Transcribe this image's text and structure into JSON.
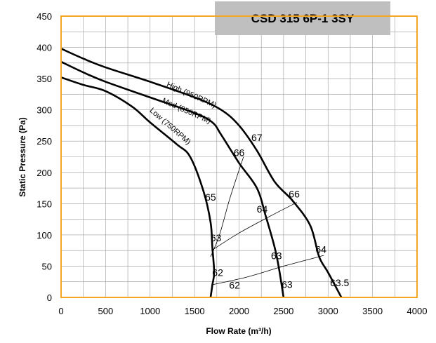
{
  "chart_data": {
    "type": "line",
    "title": "CSD 315 6P-1 3SY",
    "xlabel": "Flow Rate (m³/h)",
    "ylabel": "Static Pressure (Pa)",
    "xlim": [
      0,
      4000
    ],
    "ylim": [
      0,
      450
    ],
    "x_ticks": [
      0,
      500,
      1000,
      1500,
      2000,
      2500,
      3000,
      3500,
      4000
    ],
    "y_ticks": [
      0,
      50,
      100,
      150,
      200,
      250,
      300,
      350,
      400,
      450
    ],
    "grid": true,
    "colors": {
      "axis_frame": "#F5A623",
      "grid": "#999999",
      "title_box": "#BFBFBF",
      "curve": "#000000",
      "sound_curve": "#000000"
    },
    "series": [
      {
        "name": "High (950RPM)",
        "x": [
          0,
          250,
          500,
          1000,
          1500,
          1800,
          2000,
          2200,
          2400,
          2600,
          2800,
          2900,
          3000,
          3150
        ],
        "y": [
          398,
          382,
          368,
          345,
          320,
          300,
          275,
          235,
          185,
          155,
          115,
          65,
          40,
          0
        ]
      },
      {
        "name": "Med (850RPM)",
        "x": [
          0,
          250,
          500,
          1000,
          1500,
          1700,
          1800,
          2000,
          2200,
          2300,
          2400,
          2450,
          2500
        ],
        "y": [
          377,
          360,
          345,
          320,
          295,
          280,
          260,
          215,
          175,
          130,
          80,
          45,
          0
        ]
      },
      {
        "name": "Low (750RPM)",
        "x": [
          0,
          250,
          500,
          800,
          1000,
          1300,
          1450,
          1600,
          1680,
          1700,
          1720,
          1700,
          1680
        ],
        "y": [
          352,
          340,
          330,
          305,
          280,
          245,
          225,
          170,
          120,
          80,
          40,
          20,
          0
        ]
      }
    ],
    "sound_curves": [
      {
        "x": [
          1680,
          1780,
          1900,
          2050
        ],
        "y": [
          65,
          100,
          160,
          225
        ]
      },
      {
        "x": [
          1690,
          2000,
          2350,
          2650
        ],
        "y": [
          75,
          103,
          130,
          152
        ]
      },
      {
        "x": [
          1690,
          2100,
          2500,
          2950
        ],
        "y": [
          20,
          33,
          50,
          67
        ]
      }
    ],
    "annotations": [
      {
        "text": "67",
        "x": 2200,
        "y": 250
      },
      {
        "text": "66",
        "x": 2000,
        "y": 226
      },
      {
        "text": "65",
        "x": 1680,
        "y": 155
      },
      {
        "text": "64",
        "x": 2260,
        "y": 136
      },
      {
        "text": "66",
        "x": 2620,
        "y": 160
      },
      {
        "text": "63",
        "x": 1740,
        "y": 90
      },
      {
        "text": "64",
        "x": 2920,
        "y": 71
      },
      {
        "text": "63",
        "x": 2420,
        "y": 61
      },
      {
        "text": "62",
        "x": 1760,
        "y": 34
      },
      {
        "text": "62",
        "x": 1950,
        "y": 14
      },
      {
        "text": "63",
        "x": 2540,
        "y": 15
      },
      {
        "text": "63.5",
        "x": 3130,
        "y": 18
      }
    ]
  }
}
